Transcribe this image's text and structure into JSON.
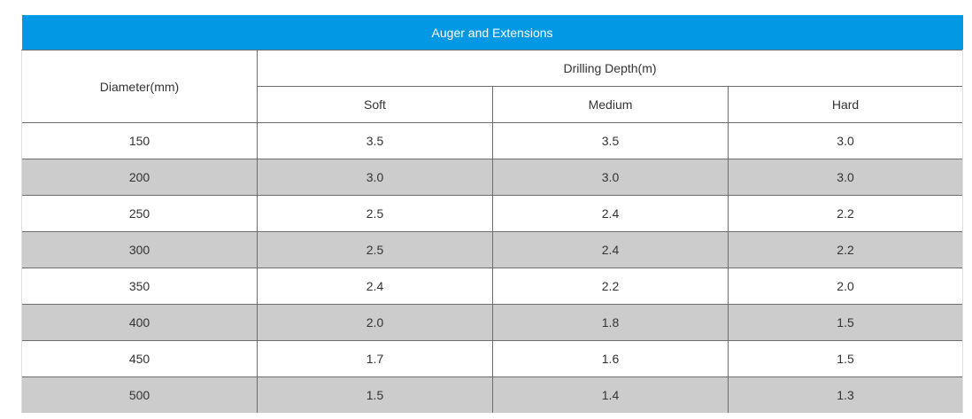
{
  "table": {
    "title": "Auger and Extensions",
    "header": {
      "diameter_label": "Diameter(mm)",
      "depth_group_label": "Drilling Depth(m)",
      "soft_label": "Soft",
      "medium_label": "Medium",
      "hard_label": "Hard"
    },
    "rows": [
      {
        "diameter": "150",
        "soft": "3.5",
        "medium": "3.5",
        "hard": "3.0"
      },
      {
        "diameter": "200",
        "soft": "3.0",
        "medium": "3.0",
        "hard": "3.0"
      },
      {
        "diameter": "250",
        "soft": "2.5",
        "medium": "2.4",
        "hard": "2.2"
      },
      {
        "diameter": "300",
        "soft": "2.5",
        "medium": "2.4",
        "hard": "2.2"
      },
      {
        "diameter": "350",
        "soft": "2.4",
        "medium": "2.2",
        "hard": "2.0"
      },
      {
        "diameter": "400",
        "soft": "2.0",
        "medium": "1.8",
        "hard": "1.5"
      },
      {
        "diameter": "450",
        "soft": "1.7",
        "medium": "1.6",
        "hard": "1.5"
      },
      {
        "diameter": "500",
        "soft": "1.5",
        "medium": "1.4",
        "hard": "1.3"
      }
    ],
    "colors": {
      "title_bg": "#0398e3",
      "title_text": "#ffffff",
      "row_alt_bg": "#cccccc",
      "row_bg": "#ffffff",
      "grid_line": "#6e6e6e"
    }
  }
}
